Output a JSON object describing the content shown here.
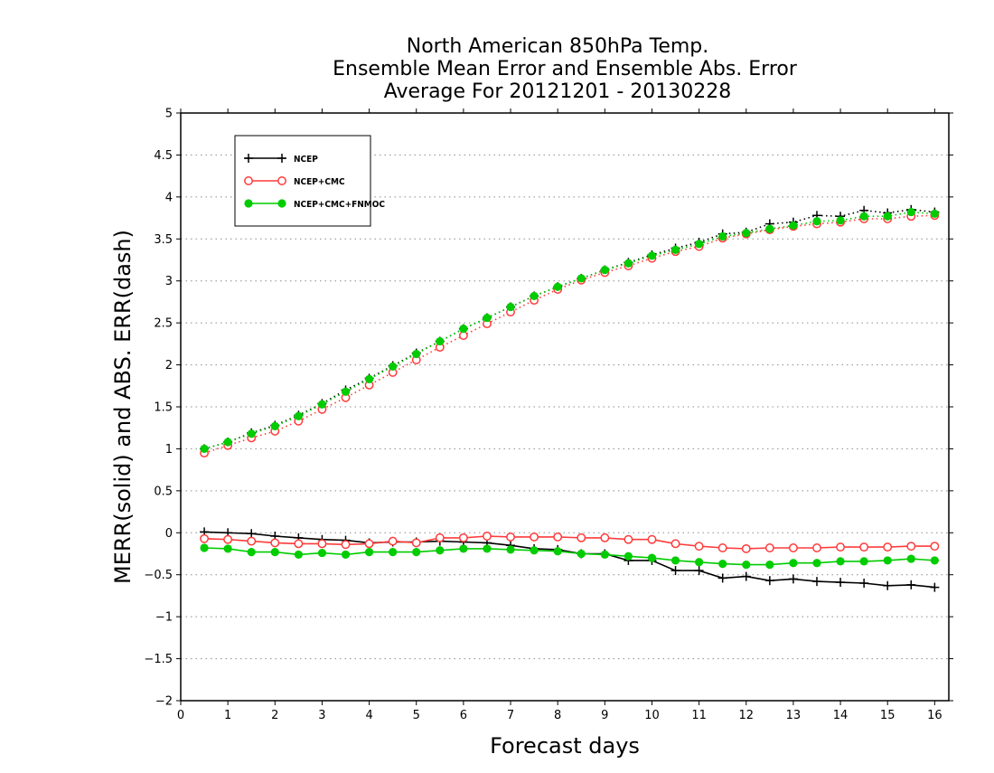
{
  "chart_data": {
    "type": "line",
    "title_lines": [
      "North American 850hPa Temp.",
      "Ensemble Mean Error and Ensemble Abs. Error",
      "Average For 20121201 - 20130228"
    ],
    "xlabel": "Forecast days",
    "ylabel": "MERR(solid) and ABS. ERR(dash)",
    "xlim": [
      0,
      16.3
    ],
    "ylim": [
      -2,
      5
    ],
    "x_ticks": [
      0,
      1,
      2,
      3,
      4,
      5,
      6,
      7,
      8,
      9,
      10,
      11,
      12,
      13,
      14,
      15,
      16
    ],
    "y_ticks": [
      -2,
      -1.5,
      -1,
      -0.5,
      0,
      0.5,
      1,
      1.5,
      2,
      2.5,
      3,
      3.5,
      4,
      4.5,
      5
    ],
    "x_tick_labels": [
      "0",
      "1",
      "2",
      "3",
      "4",
      "5",
      "6",
      "7",
      "8",
      "9",
      "10",
      "11",
      "12",
      "13",
      "14",
      "15",
      "16"
    ],
    "y_tick_labels": [
      "−2",
      "−1.5",
      "−1",
      "−0.5",
      "0",
      "0.5",
      "1",
      "1.5",
      "2",
      "2.5",
      "3",
      "3.5",
      "4",
      "4.5",
      "5"
    ],
    "grid": "horizontal dotted",
    "legend_position": "top-left",
    "x": [
      0.5,
      1,
      1.5,
      2,
      2.5,
      3,
      3.5,
      4,
      4.5,
      5,
      5.5,
      6,
      6.5,
      7,
      7.5,
      8,
      8.5,
      9,
      9.5,
      10,
      10.5,
      11,
      11.5,
      12,
      12.5,
      13,
      13.5,
      14,
      14.5,
      15,
      15.5,
      16
    ],
    "series": [
      {
        "name": "NCEP",
        "color": "#000000",
        "marker": "plus",
        "mean_error": [
          0.01,
          0.0,
          -0.01,
          -0.04,
          -0.06,
          -0.08,
          -0.09,
          -0.12,
          -0.11,
          -0.11,
          -0.1,
          -0.11,
          -0.12,
          -0.15,
          -0.19,
          -0.2,
          -0.25,
          -0.25,
          -0.33,
          -0.33,
          -0.45,
          -0.45,
          -0.54,
          -0.52,
          -0.57,
          -0.55,
          -0.58,
          -0.59,
          -0.6,
          -0.63,
          -0.62,
          -0.65
        ],
        "abs_error": [
          1.0,
          1.08,
          1.19,
          1.28,
          1.4,
          1.54,
          1.7,
          1.84,
          1.99,
          2.14,
          2.28,
          2.43,
          2.56,
          2.69,
          2.82,
          2.93,
          3.03,
          3.13,
          3.22,
          3.31,
          3.39,
          3.46,
          3.56,
          3.58,
          3.68,
          3.7,
          3.78,
          3.77,
          3.84,
          3.81,
          3.85,
          3.82
        ]
      },
      {
        "name": "NCEP+CMC",
        "color": "#ff3b3b",
        "marker": "open-circle",
        "mean_error": [
          -0.07,
          -0.08,
          -0.1,
          -0.12,
          -0.13,
          -0.13,
          -0.14,
          -0.13,
          -0.1,
          -0.12,
          -0.06,
          -0.06,
          -0.04,
          -0.05,
          -0.05,
          -0.05,
          -0.06,
          -0.06,
          -0.08,
          -0.08,
          -0.13,
          -0.16,
          -0.18,
          -0.19,
          -0.18,
          -0.18,
          -0.18,
          -0.17,
          -0.17,
          -0.17,
          -0.16,
          -0.16
        ],
        "abs_error": [
          0.95,
          1.04,
          1.13,
          1.21,
          1.33,
          1.47,
          1.61,
          1.76,
          1.91,
          2.06,
          2.21,
          2.35,
          2.49,
          2.63,
          2.77,
          2.9,
          3.01,
          3.1,
          3.18,
          3.27,
          3.35,
          3.41,
          3.51,
          3.56,
          3.61,
          3.65,
          3.68,
          3.7,
          3.74,
          3.74,
          3.77,
          3.78
        ]
      },
      {
        "name": "NCEP+CMC+FNMOC",
        "color": "#00cc00",
        "marker": "filled-circle",
        "mean_error": [
          -0.18,
          -0.19,
          -0.23,
          -0.23,
          -0.26,
          -0.24,
          -0.26,
          -0.23,
          -0.23,
          -0.23,
          -0.21,
          -0.19,
          -0.19,
          -0.2,
          -0.21,
          -0.22,
          -0.25,
          -0.26,
          -0.28,
          -0.3,
          -0.33,
          -0.35,
          -0.37,
          -0.38,
          -0.38,
          -0.36,
          -0.36,
          -0.34,
          -0.34,
          -0.33,
          -0.31,
          -0.33
        ],
        "abs_error": [
          1.0,
          1.08,
          1.18,
          1.27,
          1.39,
          1.53,
          1.68,
          1.83,
          1.98,
          2.13,
          2.28,
          2.43,
          2.56,
          2.69,
          2.82,
          2.93,
          3.03,
          3.13,
          3.21,
          3.3,
          3.37,
          3.44,
          3.53,
          3.57,
          3.62,
          3.66,
          3.71,
          3.72,
          3.77,
          3.77,
          3.82,
          3.8
        ]
      }
    ]
  }
}
